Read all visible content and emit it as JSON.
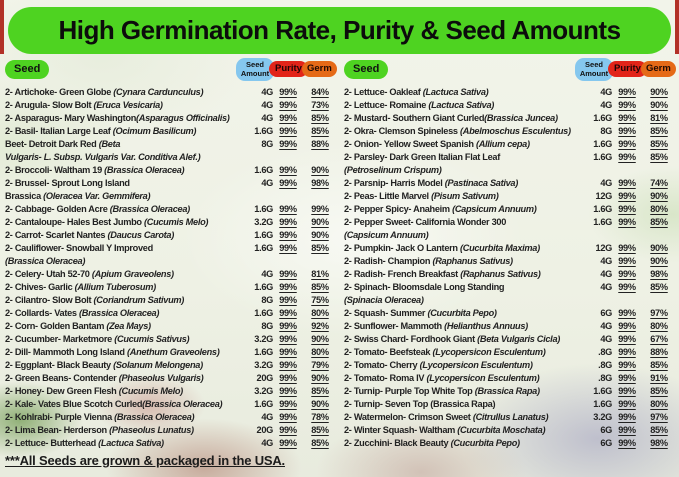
{
  "banner": {
    "title": "High Germination Rate, Purity & Seed Amounts"
  },
  "table_header": {
    "seed": "Seed",
    "amount_line1": "Seed",
    "amount_line2": "Amount",
    "purity": "Purity",
    "germ": "Germ"
  },
  "footer": {
    "note": "***All Seeds are grown & packaged in the USA."
  },
  "colors": {
    "banner_green": "#4ed321",
    "seed_pill_green": "#4ed321",
    "amount_pill_blue": "#85c7ee",
    "purity_pill_red": "#e22419",
    "germ_pill_orange": "#e56a17",
    "edge_red": "#b23127",
    "text": "#222222"
  },
  "table": {
    "columns": [
      {
        "side": "left",
        "rows": [
          {
            "lines": [
              {
                "t": "2- Artichoke- Green Globe ",
                "i": "(Cynara Cardunculus)"
              }
            ],
            "amount": "4G",
            "purity": "99%",
            "germ": "84%"
          },
          {
            "lines": [
              {
                "t": "2- Arugula- Slow Bolt ",
                "i": "(Eruca Vesicaria)"
              }
            ],
            "amount": "4G",
            "purity": "99%",
            "germ": "73%"
          },
          {
            "lines": [
              {
                "t": "2- Asparagus- Mary Washington",
                "i": "(Asparagus Officinalis)"
              }
            ],
            "amount": "4G",
            "purity": "99%",
            "germ": "85%"
          },
          {
            "lines": [
              {
                "t": "2- Basil- Italian Large Leaf ",
                "i": "(Ocimum Basilicum)"
              }
            ],
            "amount": "1.6G",
            "purity": "99%",
            "germ": "85%"
          },
          {
            "lines": [
              {
                "t": "Beet- Detroit Dark Red ",
                "i": "(Beta"
              },
              {
                "t": "",
                "i": "Vulgaris- L. Subsp. Vulgaris Var. Conditiva Alef.)"
              }
            ],
            "amount": "8G",
            "purity": "99%",
            "germ": "88%"
          },
          {
            "lines": [
              {
                "t": "2- Broccoli- Waltham 19 ",
                "i": "(Brassica Oleracea)"
              }
            ],
            "amount": "1.6G",
            "purity": "99%",
            "germ": "90%"
          },
          {
            "lines": [
              {
                "t": "2- Brussel- Sprout Long Island",
                "i": ""
              },
              {
                "t": "Brassica ",
                "i": "(Oleracea Var. Gemmifera)"
              }
            ],
            "amount": "4G",
            "purity": "99%",
            "germ": "98%"
          },
          {
            "lines": [
              {
                "t": "2- Cabbage- Golden Acre ",
                "i": "(Brassica Oleracea)"
              }
            ],
            "amount": "1.6G",
            "purity": "99%",
            "germ": "99%"
          },
          {
            "lines": [
              {
                "t": "2- Cantaloupe- Hales Best Jumbo ",
                "i": "(Cucumis Melo)"
              }
            ],
            "amount": "3.2G",
            "purity": "99%",
            "germ": "90%"
          },
          {
            "lines": [
              {
                "t": "2- Carrot- Scarlet Nantes ",
                "i": "(Daucus Carota)"
              }
            ],
            "amount": "1.6G",
            "purity": "99%",
            "germ": "90%"
          },
          {
            "lines": [
              {
                "t": "2- Cauliflower- Snowball Y Improved",
                "i": ""
              },
              {
                "t": "",
                "i": "(Brassica Oleracea)"
              }
            ],
            "amount": "1.6G",
            "purity": "99%",
            "germ": "85%"
          },
          {
            "lines": [
              {
                "t": "2- Celery- Utah 52-70 ",
                "i": "(Apium Graveolens)"
              }
            ],
            "amount": "4G",
            "purity": "99%",
            "germ": "81%"
          },
          {
            "lines": [
              {
                "t": "2- Chives- Garlic ",
                "i": "(Allium Tuberosum)"
              }
            ],
            "amount": "1.6G",
            "purity": "99%",
            "germ": "85%"
          },
          {
            "lines": [
              {
                "t": "2- Cilantro- Slow Bolt ",
                "i": "(Coriandrum Sativum)"
              }
            ],
            "amount": "8G",
            "purity": "99%",
            "germ": "75%"
          },
          {
            "lines": [
              {
                "t": "2- Collards- Vates ",
                "i": "(Brassica Oleracea)"
              }
            ],
            "amount": "1.6G",
            "purity": "99%",
            "germ": "80%"
          },
          {
            "lines": [
              {
                "t": "2- Corn- Golden Bantam ",
                "i": "(Zea Mays)"
              }
            ],
            "amount": "8G",
            "purity": "99%",
            "germ": "92%"
          },
          {
            "lines": [
              {
                "t": "2- Cucumber- Marketmore ",
                "i": "(Cucumis Sativus)"
              }
            ],
            "amount": "3.2G",
            "purity": "99%",
            "germ": "90%"
          },
          {
            "lines": [
              {
                "t": "2- Dill- Mammoth Long Island ",
                "i": "(Anethum Graveolens)"
              }
            ],
            "amount": "1.6G",
            "purity": "99%",
            "germ": "80%"
          },
          {
            "lines": [
              {
                "t": "2- Eggplant- Black Beauty ",
                "i": "(Solanum Melongena)"
              }
            ],
            "amount": "3.2G",
            "purity": "99%",
            "germ": "79%"
          },
          {
            "lines": [
              {
                "t": "2- Green Beans- Contender ",
                "i": "(Phaseolus Vulgaris)"
              }
            ],
            "amount": "20G",
            "purity": "99%",
            "germ": "90%"
          },
          {
            "lines": [
              {
                "t": "2- Honey- Dew Green Flesh ",
                "i": "(Cucumis Melo)"
              }
            ],
            "amount": "3.2G",
            "purity": "99%",
            "germ": "85%"
          },
          {
            "lines": [
              {
                "t": "2- Kale- Vates Blue Scotch Curled",
                "i": "(Brassica Oleracea)"
              }
            ],
            "amount": "1.6G",
            "purity": "99%",
            "germ": "90%"
          },
          {
            "lines": [
              {
                "t": "2- Kohlrabi- Purple Vienna ",
                "i": "(Brassica Oleracea)"
              }
            ],
            "amount": "4G",
            "purity": "99%",
            "germ": "78%"
          },
          {
            "lines": [
              {
                "t": "2- Lima Bean- Herderson ",
                "i": "(Phaseolus Lunatus)"
              }
            ],
            "amount": "20G",
            "purity": "99%",
            "germ": "85%"
          },
          {
            "lines": [
              {
                "t": "2- Lettuce- Butterhead ",
                "i": "(Lactuca Sativa)"
              }
            ],
            "amount": "4G",
            "purity": "99%",
            "germ": "85%"
          }
        ]
      },
      {
        "side": "right",
        "rows": [
          {
            "lines": [
              {
                "t": "2- Lettuce- Oakleaf ",
                "i": "(Lactuca Sativa)"
              }
            ],
            "amount": "4G",
            "purity": "99%",
            "germ": "90%"
          },
          {
            "lines": [
              {
                "t": "2- Lettuce- Romaine ",
                "i": "(Lactuca Sativa)"
              }
            ],
            "amount": "4G",
            "purity": "99%",
            "germ": "90%"
          },
          {
            "lines": [
              {
                "t": "2- Mustard- Southern Giant Curled",
                "i": "(Brassica Juncea)"
              }
            ],
            "amount": "1.6G",
            "purity": "99%",
            "germ": "81%"
          },
          {
            "lines": [
              {
                "t": "2- Okra- Clemson Spineless ",
                "i": "(Abelmoschus Esculentus)"
              }
            ],
            "amount": "8G",
            "purity": "99%",
            "germ": "85%"
          },
          {
            "lines": [
              {
                "t": "2- Onion- Yellow Sweet Spanish ",
                "i": "(Allium cepa)"
              }
            ],
            "amount": "1.6G",
            "purity": "99%",
            "germ": "85%"
          },
          {
            "lines": [
              {
                "t": "2- Parsley- Dark Green Italian Flat Leaf",
                "i": ""
              },
              {
                "t": "",
                "i": "(Petroselinum Crispum)"
              }
            ],
            "amount": "1.6G",
            "purity": "99%",
            "germ": "85%"
          },
          {
            "lines": [
              {
                "t": "2- Parsnip- Harris Model ",
                "i": "(Pastinaca Sativa)"
              }
            ],
            "amount": "4G",
            "purity": "99%",
            "germ": "74%"
          },
          {
            "lines": [
              {
                "t": "2- Peas- Little Marvel ",
                "i": "(Pisum Sativum)"
              }
            ],
            "amount": "12G",
            "purity": "99%",
            "germ": "90%"
          },
          {
            "lines": [
              {
                "t": "2- Pepper Spicy- Anaheim ",
                "i": "(Capsicum Annuum)"
              }
            ],
            "amount": "1.6G",
            "purity": "99%",
            "germ": "80%"
          },
          {
            "lines": [
              {
                "t": "2- Pepper Sweet- California Wonder 300",
                "i": ""
              },
              {
                "t": "",
                "i": "(Capsicum Annuum)"
              }
            ],
            "amount": "1.6G",
            "purity": "99%",
            "germ": "85%"
          },
          {
            "lines": [
              {
                "t": "2- Pumpkin- Jack O Lantern ",
                "i": "(Cucurbita Maxima)"
              }
            ],
            "amount": "12G",
            "purity": "99%",
            "germ": "90%"
          },
          {
            "lines": [
              {
                "t": "2- Radish- Champion ",
                "i": "(Raphanus Sativus)"
              }
            ],
            "amount": "4G",
            "purity": "99%",
            "germ": "90%"
          },
          {
            "lines": [
              {
                "t": "2- Radish- French Breakfast ",
                "i": "(Raphanus Sativus)"
              }
            ],
            "amount": "4G",
            "purity": "99%",
            "germ": "98%"
          },
          {
            "lines": [
              {
                "t": "2- Spinach- Bloomsdale Long Standing",
                "i": ""
              },
              {
                "t": "",
                "i": "(Spinacia Oleracea)"
              }
            ],
            "amount": "4G",
            "purity": "99%",
            "germ": "85%"
          },
          {
            "lines": [
              {
                "t": "2- Squash- Summer ",
                "i": "(Cucurbita Pepo)"
              }
            ],
            "amount": "6G",
            "purity": "99%",
            "germ": "97%"
          },
          {
            "lines": [
              {
                "t": "2- Sunflower- Mammoth ",
                "i": "(Helianthus Annuus)"
              }
            ],
            "amount": "4G",
            "purity": "99%",
            "germ": "80%"
          },
          {
            "lines": [
              {
                "t": "2- Swiss Chard- Fordhook Giant ",
                "i": "(Beta Vulgaris Cicla)"
              }
            ],
            "amount": "4G",
            "purity": "99%",
            "germ": "67%"
          },
          {
            "lines": [
              {
                "t": "2- Tomato- Beefsteak ",
                "i": "(Lycopersicon Esculentum)"
              }
            ],
            "amount": ".8G",
            "purity": "99%",
            "germ": "88%"
          },
          {
            "lines": [
              {
                "t": "2- Tomato- Cherry ",
                "i": "(Lycopersicon Esculentum)"
              }
            ],
            "amount": ".8G",
            "purity": "99%",
            "germ": "85%"
          },
          {
            "lines": [
              {
                "t": "2- Tomato- Roma IV ",
                "i": "(Lycopersicon Esculentum)"
              }
            ],
            "amount": ".8G",
            "purity": "99%",
            "germ": "91%"
          },
          {
            "lines": [
              {
                "t": "2- Turnip- Purple Top White Top ",
                "i": "(Brassica Rapa)"
              }
            ],
            "amount": "1.6G",
            "purity": "99%",
            "germ": "85%"
          },
          {
            "lines": [
              {
                "t": "2- Turnip- Seven Top (Brassica Rapa)",
                "i": ""
              }
            ],
            "amount": "1.6G",
            "purity": "99%",
            "germ": "80%"
          },
          {
            "lines": [
              {
                "t": "2- Watermelon- Crimson Sweet ",
                "i": "(Citrullus Lanatus)"
              }
            ],
            "amount": "3.2G",
            "purity": "99%",
            "germ": "97%"
          },
          {
            "lines": [
              {
                "t": "2- Winter Squash- Waltham ",
                "i": "(Cucurbita Moschata)"
              }
            ],
            "amount": "6G",
            "purity": "99%",
            "germ": "85%"
          },
          {
            "lines": [
              {
                "t": "2- Zucchini- Black Beauty ",
                "i": "(Cucurbita Pepo)"
              }
            ],
            "amount": "6G",
            "purity": "99%",
            "germ": "98%"
          }
        ]
      }
    ]
  }
}
